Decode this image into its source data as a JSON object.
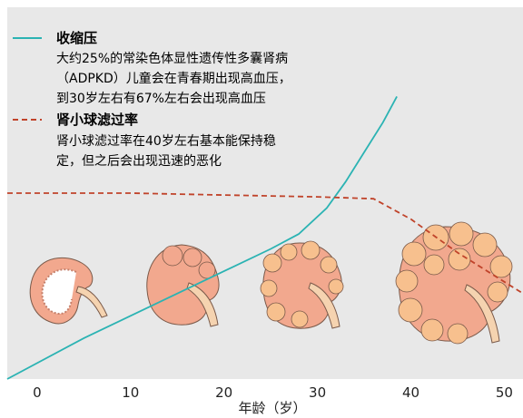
{
  "chart_data": {
    "type": "line",
    "xlabel": "年龄（岁）",
    "ylabel": "",
    "xlim": [
      -3.2,
      52
    ],
    "ylim": [
      0,
      1
    ],
    "x_ticks": [
      "0",
      "10",
      "20",
      "30",
      "40",
      "50"
    ],
    "tick_values": [
      0,
      10,
      20,
      30,
      40,
      50
    ],
    "grid": false,
    "legend_position": "top-left",
    "background": "#e8e8e8",
    "series": [
      {
        "name": "收缩压",
        "style": "solid",
        "color": "#2bb3b3",
        "x": [
          -3.2,
          5,
          10,
          15,
          20,
          25,
          28,
          31,
          33,
          35,
          37,
          38.5
        ],
        "y": [
          0.0,
          0.11,
          0.17,
          0.23,
          0.29,
          0.35,
          0.39,
          0.46,
          0.53,
          0.61,
          0.69,
          0.76
        ]
      },
      {
        "name": "肾小球滤过率",
        "style": "dashed",
        "color": "#c0432a",
        "x": [
          -3.2,
          10,
          20,
          30,
          36,
          40,
          45,
          52
        ],
        "y": [
          0.5,
          0.5,
          0.495,
          0.49,
          0.485,
          0.43,
          0.34,
          0.23
        ]
      }
    ]
  },
  "legend": {
    "entries": [
      {
        "title": "收缩压",
        "lines": [
          "大约25%的常染色体显性遗传性多囊肾病",
          "（ADPKD）儿童会在青春期出现高血压，",
          "到30岁左右有67%左右会出现高血压"
        ]
      },
      {
        "title": "肾小球滤过率",
        "lines": [
          "肾小球滤过率在40岁左右基本能保持稳",
          "定，但之后会出现迅速的恶化"
        ]
      }
    ]
  },
  "kidney_icons": [
    "normal-kidney-icon",
    "early-cystic-kidney-icon",
    "cystic-kidney-icon",
    "polycystic-kidney-icon"
  ]
}
